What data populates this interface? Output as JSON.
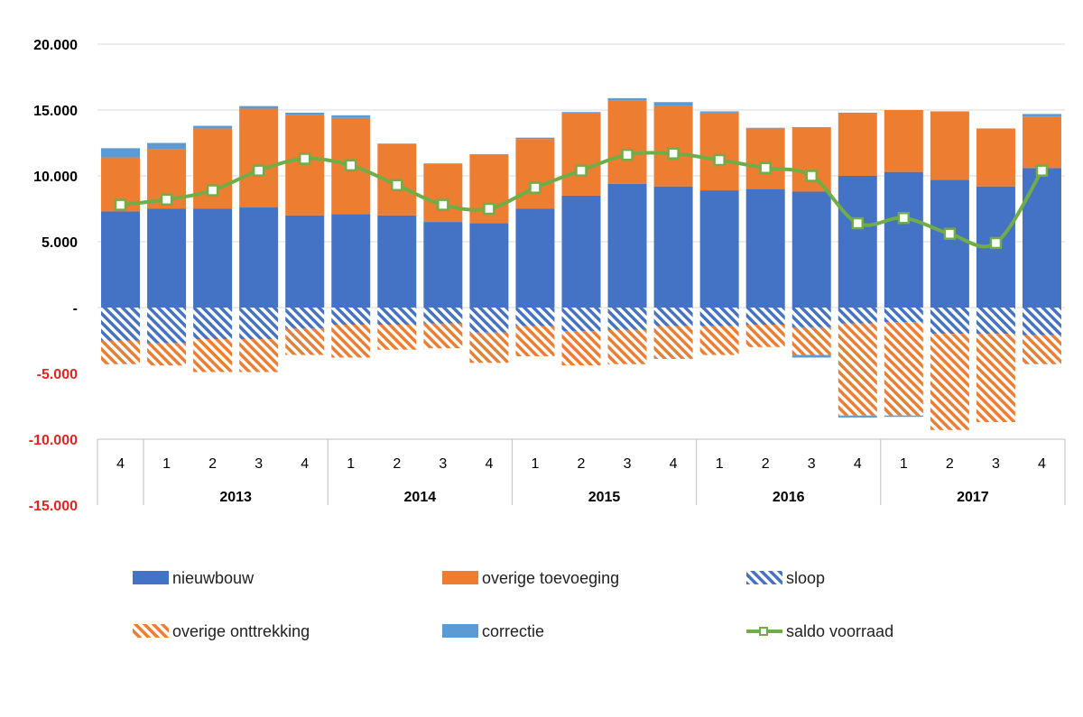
{
  "chart_data": {
    "type": "bar",
    "stacked": true,
    "ylim": [
      -15000,
      20000
    ],
    "yticks": [
      20000,
      15000,
      10000,
      5000,
      0,
      -5000,
      -10000,
      -15000
    ],
    "ytick_labels": [
      "20.000",
      "15.000",
      "10.000",
      "5.000",
      "-",
      "-5.000",
      "-10.000",
      "-15.000"
    ],
    "negative_tick_color": "#e8231f",
    "grid": true,
    "legend_position": "bottom",
    "categories": [
      "4",
      "1",
      "2",
      "3",
      "4",
      "1",
      "2",
      "3",
      "4",
      "1",
      "2",
      "3",
      "4",
      "1",
      "2",
      "3",
      "4",
      "1",
      "2",
      "3",
      "4"
    ],
    "year_groups": [
      {
        "label": "",
        "count": 1
      },
      {
        "label": "2013",
        "count": 4
      },
      {
        "label": "2014",
        "count": 4
      },
      {
        "label": "2015",
        "count": 4
      },
      {
        "label": "2016",
        "count": 4
      },
      {
        "label": "2017",
        "count": 4
      }
    ],
    "series": [
      {
        "name": "nieuwbouw",
        "color": "#4472c4",
        "pattern": "solid",
        "values": [
          7300,
          7500,
          7500,
          7600,
          7000,
          7100,
          7000,
          6500,
          6400,
          7500,
          8500,
          9400,
          9200,
          8900,
          9000,
          8800,
          10000,
          10300,
          9700,
          9200,
          10600
        ]
      },
      {
        "name": "overige toevoeging",
        "color": "#ed7d31",
        "pattern": "solid",
        "values": [
          4100,
          4500,
          6100,
          7500,
          7600,
          7300,
          5400,
          4400,
          5200,
          5300,
          6300,
          6300,
          6100,
          5900,
          4600,
          4900,
          4800,
          4700,
          5200,
          4400,
          3900
        ]
      },
      {
        "name": "correctie",
        "color": "#5b9bd5",
        "pattern": "solid",
        "values": [
          700,
          500,
          200,
          200,
          200,
          200,
          50,
          50,
          50,
          100,
          50,
          200,
          300,
          100,
          50,
          0,
          0,
          0,
          0,
          0,
          200
        ]
      },
      {
        "name": "sloop",
        "color": "#4472c4",
        "pattern": "hatch",
        "values": [
          -2500,
          -2700,
          -2400,
          -2400,
          -1600,
          -1300,
          -1300,
          -1200,
          -1900,
          -1400,
          -1800,
          -1700,
          -1400,
          -1400,
          -1300,
          -1500,
          -1200,
          -1100,
          -2000,
          -2000,
          -2100
        ]
      },
      {
        "name": "overige onttrekking",
        "color": "#ed7d31",
        "pattern": "hatch",
        "values": [
          -1800,
          -1700,
          -2500,
          -2500,
          -2000,
          -2500,
          -1900,
          -1900,
          -2300,
          -2300,
          -2600,
          -2600,
          -2500,
          -2200,
          -1700,
          -2100,
          -7000,
          -7100,
          -7300,
          -6700,
          -2200
        ]
      },
      {
        "name": "correctie",
        "color": "#5b9bd5",
        "pattern": "solid",
        "legend": false,
        "values": [
          0,
          0,
          0,
          0,
          0,
          0,
          0,
          0,
          0,
          0,
          0,
          0,
          0,
          0,
          0,
          -200,
          -150,
          -100,
          0,
          0,
          0
        ]
      }
    ],
    "line": {
      "name": "saldo voorraad",
      "color": "#70ad47",
      "values": [
        7800,
        8200,
        8900,
        10400,
        11300,
        10800,
        9300,
        7800,
        7500,
        9100,
        10400,
        11600,
        11700,
        11200,
        10600,
        10000,
        6400,
        6800,
        5600,
        4900,
        10400
      ]
    },
    "legend": [
      {
        "name": "nieuwbouw",
        "color": "#4472c4",
        "kind": "solid"
      },
      {
        "name": "overige toevoeging",
        "color": "#ed7d31",
        "kind": "solid"
      },
      {
        "name": "sloop",
        "color": "#4472c4",
        "kind": "hatch"
      },
      {
        "name": "overige onttrekking",
        "color": "#ed7d31",
        "kind": "hatch"
      },
      {
        "name": "correctie",
        "color": "#5b9bd5",
        "kind": "solid"
      },
      {
        "name": "saldo voorraad",
        "color": "#70ad47",
        "kind": "line"
      }
    ]
  }
}
